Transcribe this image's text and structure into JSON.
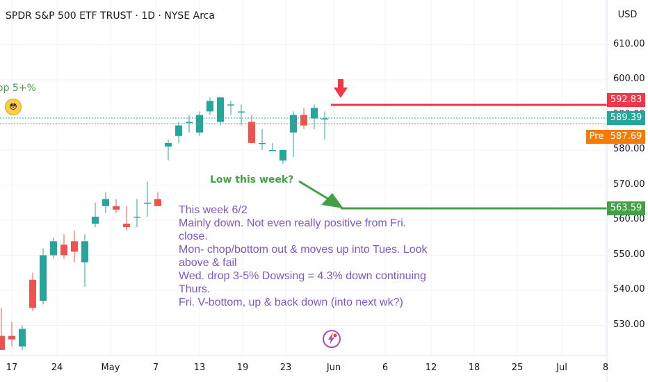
{
  "header": {
    "title": "SPDR S&P 500 ETF TRUST · 1D · NYSE Arca",
    "currency": "USD"
  },
  "axis": {
    "y_ticks": [
      "610.00",
      "600.00",
      "590.00",
      "580.00",
      "570.00",
      "560.00",
      "550.00",
      "540.00",
      "530.00"
    ],
    "x_ticks": [
      "17",
      "24",
      "May",
      "7",
      "13",
      "19",
      "23",
      "Jun",
      "6",
      "12",
      "18",
      "25",
      "Jul",
      "8"
    ]
  },
  "price_labels": {
    "red_level": "592.83",
    "last": "589.39",
    "pre_tag": "Pre",
    "pre_value": "587.69",
    "green_level": "563.59"
  },
  "annotations": {
    "top_left": "op 5+%",
    "low_week": "Low this week?",
    "note_lines": [
      "This week 6/2",
      "Mainly down. Not even really positive from Fri.",
      "close.",
      "Mon- chop/bottom out & moves up into Tues. Look",
      "above & fail",
      "Wed. drop 3-5% Dowsing = 4.3% down continuing",
      "Thurs.",
      "Fri. V-bottom,  up & back down (into next wk?)"
    ]
  },
  "colors": {
    "up": "#26a69a",
    "down": "#ef5350",
    "red_line": "#f23645",
    "green_line": "#43a047",
    "note": "#7e57c2",
    "last_price": "#26a69a",
    "pre": "#f57c00"
  },
  "chart_data": {
    "type": "candlestick",
    "title": "SPDR S&P 500 ETF TRUST · 1D · NYSE Arca",
    "ylim": [
      523,
      620
    ],
    "x_labels": [
      "17",
      "24",
      "May",
      "7",
      "13",
      "19",
      "23",
      "Jun",
      "6",
      "12",
      "18",
      "25",
      "Jul",
      "8"
    ],
    "candles": [
      {
        "o": 527,
        "h": 535,
        "l": 523,
        "c": 523
      },
      {
        "o": 527,
        "h": 531,
        "l": 524,
        "c": 526
      },
      {
        "o": 524,
        "h": 530,
        "l": 523,
        "c": 529
      },
      {
        "o": 543,
        "h": 545,
        "l": 534,
        "c": 535
      },
      {
        "o": 537,
        "h": 552,
        "l": 536,
        "c": 550
      },
      {
        "o": 550,
        "h": 555,
        "l": 549,
        "c": 554
      },
      {
        "o": 553,
        "h": 556,
        "l": 549,
        "c": 550
      },
      {
        "o": 554,
        "h": 557,
        "l": 548,
        "c": 551
      },
      {
        "o": 548,
        "h": 556,
        "l": 541,
        "c": 554
      },
      {
        "o": 559,
        "h": 565,
        "l": 558,
        "c": 561
      },
      {
        "o": 564,
        "h": 568,
        "l": 562,
        "c": 566
      },
      {
        "o": 564,
        "h": 566,
        "l": 562,
        "c": 563
      },
      {
        "o": 559,
        "h": 564,
        "l": 557,
        "c": 558
      },
      {
        "o": 561,
        "h": 566,
        "l": 558,
        "c": 561
      },
      {
        "o": 565,
        "h": 571,
        "l": 561,
        "c": 565
      },
      {
        "o": 566,
        "h": 568,
        "l": 564,
        "c": 564
      },
      {
        "o": 581,
        "h": 583,
        "l": 577,
        "c": 582
      },
      {
        "o": 584,
        "h": 588,
        "l": 582,
        "c": 587
      },
      {
        "o": 588,
        "h": 590,
        "l": 585,
        "c": 588
      },
      {
        "o": 585,
        "h": 591,
        "l": 584,
        "c": 590
      },
      {
        "o": 591,
        "h": 595,
        "l": 590,
        "c": 594
      },
      {
        "o": 588,
        "h": 595,
        "l": 587,
        "c": 595
      },
      {
        "o": 593,
        "h": 594,
        "l": 590,
        "c": 593
      },
      {
        "o": 591,
        "h": 593,
        "l": 587,
        "c": 591
      },
      {
        "o": 588,
        "h": 590,
        "l": 582,
        "c": 582
      },
      {
        "o": 582,
        "h": 586,
        "l": 580,
        "c": 582
      },
      {
        "o": 580,
        "h": 582,
        "l": 580,
        "c": 580
      },
      {
        "o": 577,
        "h": 580,
        "l": 576,
        "c": 580
      },
      {
        "o": 585,
        "h": 591,
        "l": 578,
        "c": 590
      },
      {
        "o": 590,
        "h": 592,
        "l": 586,
        "c": 587
      },
      {
        "o": 589,
        "h": 593,
        "l": 586,
        "c": 592
      },
      {
        "o": 589,
        "h": 591,
        "l": 583,
        "c": 589
      }
    ],
    "levels": [
      {
        "price": 592.83,
        "color": "red"
      },
      {
        "price": 563.59,
        "color": "green"
      }
    ],
    "last_price": 589.39,
    "pre_market_price": 587.69
  }
}
